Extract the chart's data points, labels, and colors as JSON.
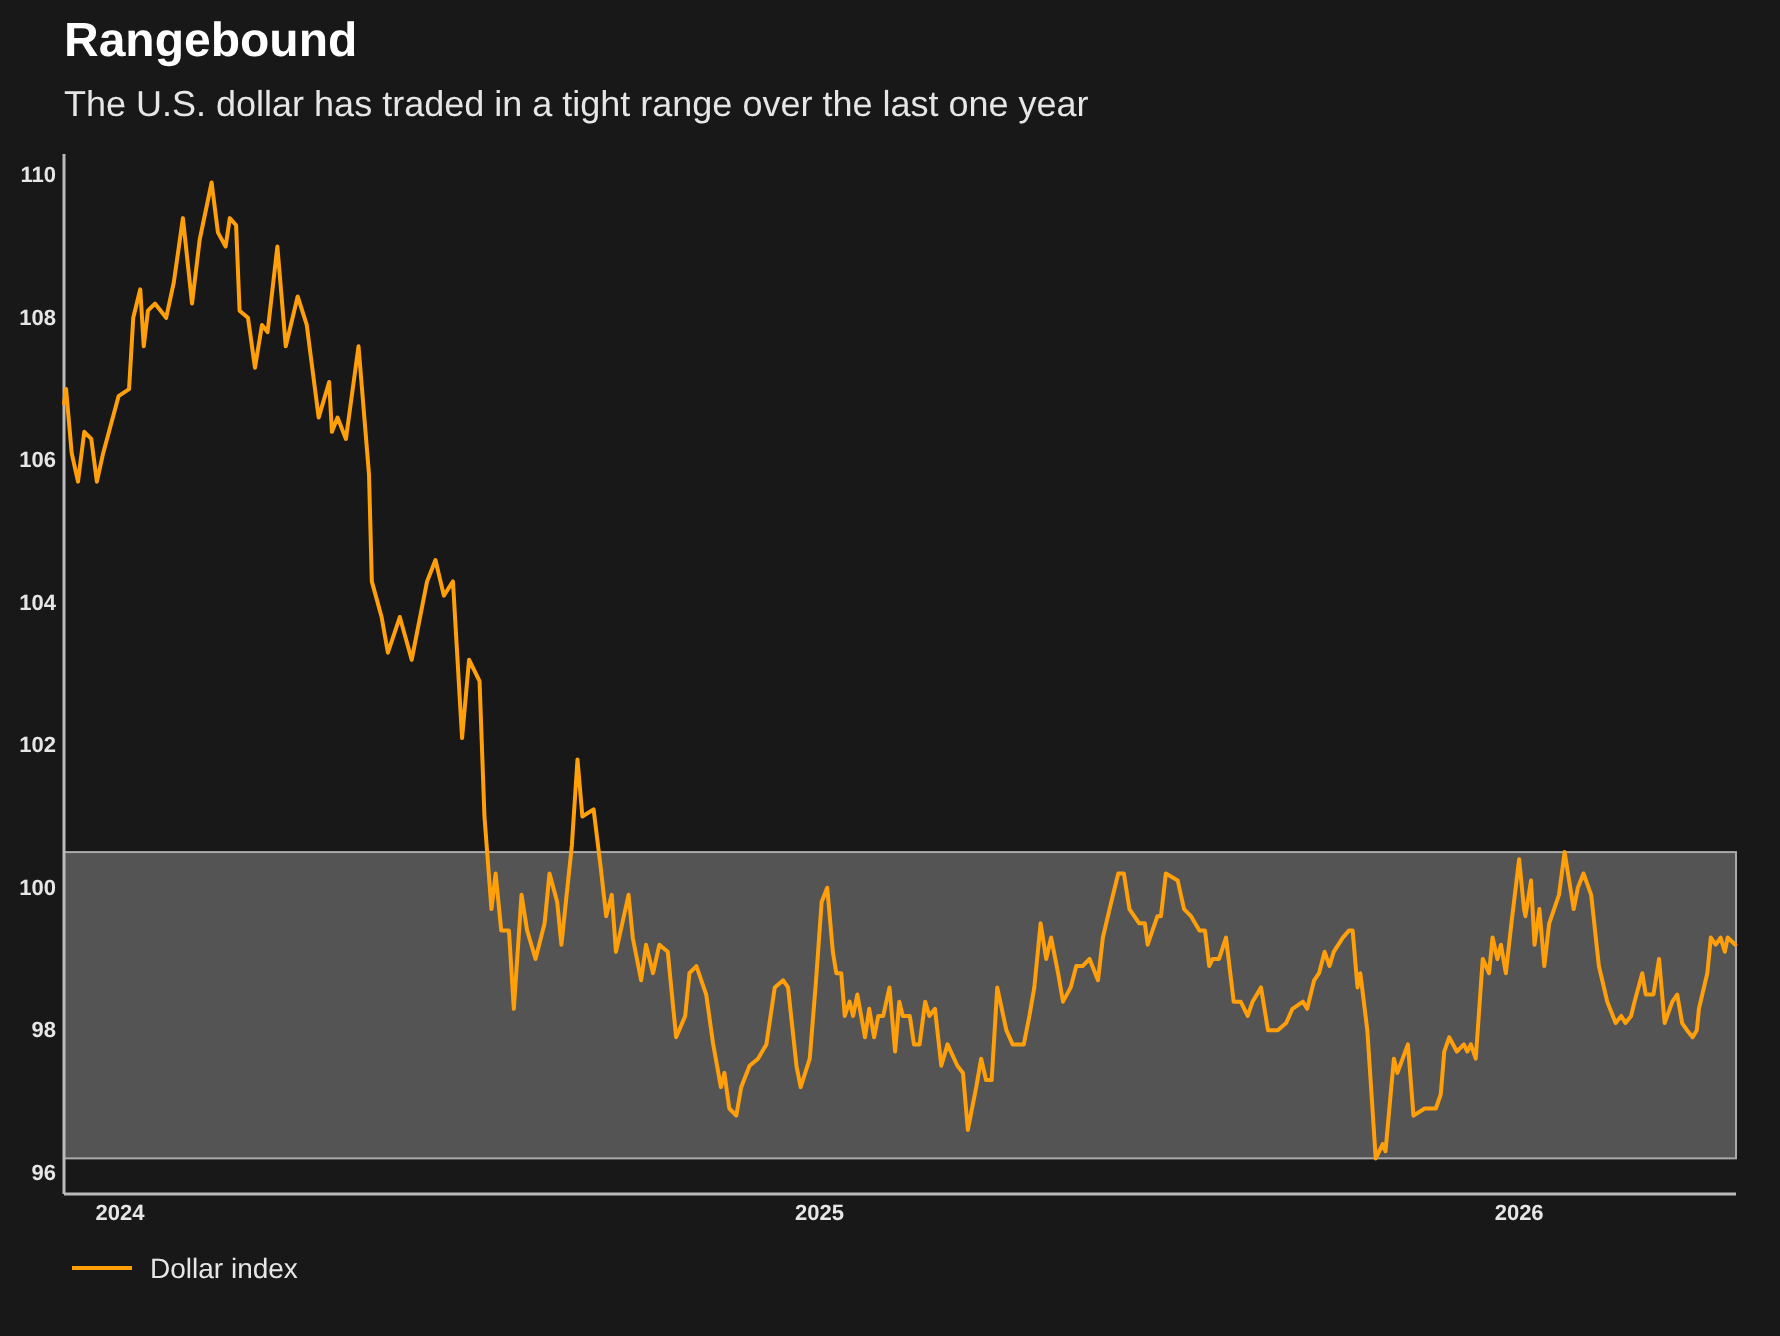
{
  "chart_data": {
    "type": "line",
    "title": "Rangebound",
    "subtitle": "The U.S. dollar has traded in a tight range over the last one year",
    "x": [
      2023.92,
      2023.923,
      2023.931,
      2023.94,
      2023.949,
      2023.959,
      2023.967,
      2023.976,
      2023.998,
      2024.013,
      2024.019,
      2024.029,
      2024.034,
      2024.04,
      2024.05,
      2024.066,
      2024.077,
      2024.09,
      2024.103,
      2024.114,
      2024.131,
      2024.14,
      2024.151,
      2024.157,
      2024.166,
      2024.171,
      2024.183,
      2024.193,
      2024.203,
      2024.211,
      2024.225,
      2024.237,
      2024.254,
      2024.267,
      2024.284,
      2024.299,
      2024.303,
      2024.311,
      2024.323,
      2024.341,
      2024.356,
      2024.36,
      2024.374,
      2024.383,
      2024.4,
      2024.417,
      2024.439,
      2024.451,
      2024.463,
      2024.476,
      2024.489,
      2024.499,
      2024.514,
      2024.521,
      2024.531,
      2024.537,
      2024.545,
      2024.556,
      2024.563,
      2024.574,
      2024.582,
      2024.594,
      2024.607,
      2024.614,
      2024.625,
      2024.631,
      2024.646,
      2024.654,
      2024.661,
      2024.677,
      2024.687,
      2024.695,
      2024.703,
      2024.709,
      2024.727,
      2024.733,
      2024.745,
      2024.752,
      2024.762,
      2024.771,
      2024.783,
      2024.795,
      2024.808,
      2024.814,
      2024.824,
      2024.838,
      2024.848,
      2024.859,
      2024.864,
      2024.871,
      2024.881,
      2024.888,
      2024.9,
      2024.912,
      2024.924,
      2024.936,
      2024.948,
      2024.955,
      2024.967,
      2024.973,
      2024.986,
      2024.995,
      2025.003,
      2025.011,
      2025.019,
      2025.024,
      2025.031,
      2025.036,
      2025.043,
      2025.048,
      2025.054,
      2025.065,
      2025.071,
      2025.078,
      2025.084,
      2025.091,
      2025.1,
      2025.108,
      2025.114,
      2025.119,
      2025.129,
      2025.135,
      2025.143,
      2025.151,
      2025.157,
      2025.165,
      2025.174,
      2025.183,
      2025.197,
      2025.205,
      2025.212,
      2025.224,
      2025.231,
      2025.238,
      2025.246,
      2025.254,
      2025.267,
      2025.276,
      2025.286,
      2025.292,
      2025.3,
      2025.307,
      2025.316,
      2025.324,
      2025.331,
      2025.341,
      2025.348,
      2025.359,
      2025.367,
      2025.376,
      2025.386,
      2025.398,
      2025.405,
      2025.417,
      2025.427,
      2025.435,
      2025.443,
      2025.457,
      2025.465,
      2025.469,
      2025.483,
      2025.488,
      2025.495,
      2025.512,
      2025.521,
      2025.531,
      2025.543,
      2025.551,
      2025.557,
      2025.562,
      2025.571,
      2025.581,
      2025.592,
      2025.602,
      2025.612,
      2025.619,
      2025.631,
      2025.641,
      2025.655,
      2025.667,
      2025.676,
      2025.691,
      2025.697,
      2025.707,
      2025.714,
      2025.722,
      2025.729,
      2025.735,
      2025.748,
      2025.757,
      2025.762,
      2025.769,
      2025.773,
      2025.783,
      2025.795,
      2025.805,
      2025.809,
      2025.821,
      2025.826,
      2025.841,
      2025.849,
      2025.865,
      2025.869,
      2025.881,
      2025.888,
      2025.893,
      2025.9,
      2025.911,
      2025.921,
      2025.926,
      2025.931,
      2025.938,
      2025.948,
      2025.957,
      2025.962,
      2025.969,
      2025.974,
      2025.981,
      2025.989,
      2026.0,
      2026.007,
      2026.009,
      2026.017,
      2026.022,
      2026.029,
      2026.036,
      2026.043,
      2026.057,
      2026.065,
      2026.078,
      2026.084,
      2026.092,
      2026.103,
      2026.114,
      2026.126,
      2026.138,
      2026.146,
      2026.152,
      2026.16,
      2026.165,
      2026.176,
      2026.181,
      2026.192,
      2026.2,
      2026.208,
      2026.219,
      2026.226,
      2026.233,
      2026.24,
      2026.248,
      2026.254,
      2026.257,
      2026.269,
      2026.274,
      2026.281,
      2026.288,
      2026.294,
      2026.298,
      2026.309
    ],
    "series": [
      {
        "name": "Dollar index",
        "color": "#ff9f0a",
        "values": [
          106.8,
          107.0,
          106.1,
          105.7,
          106.4,
          106.3,
          105.7,
          106.1,
          106.9,
          107.0,
          108.0,
          108.4,
          107.6,
          108.1,
          108.2,
          108.0,
          108.5,
          109.4,
          108.2,
          109.1,
          109.9,
          109.2,
          109.0,
          109.4,
          109.3,
          108.1,
          108.0,
          107.3,
          107.9,
          107.8,
          109.0,
          107.6,
          108.3,
          107.9,
          106.6,
          107.1,
          106.4,
          106.6,
          106.3,
          107.6,
          105.8,
          104.3,
          103.8,
          103.3,
          103.8,
          103.2,
          104.3,
          104.6,
          104.1,
          104.3,
          102.1,
          103.2,
          102.9,
          101.0,
          99.7,
          100.2,
          99.4,
          99.4,
          98.3,
          99.9,
          99.4,
          99.0,
          99.5,
          100.2,
          99.8,
          99.2,
          100.6,
          101.8,
          101.0,
          101.1,
          100.3,
          99.6,
          99.9,
          99.1,
          99.9,
          99.3,
          98.7,
          99.2,
          98.8,
          99.2,
          99.1,
          97.9,
          98.2,
          98.8,
          98.9,
          98.5,
          97.8,
          97.2,
          97.4,
          96.9,
          96.8,
          97.2,
          97.5,
          97.6,
          97.8,
          98.6,
          98.7,
          98.6,
          97.5,
          97.2,
          97.6,
          98.7,
          99.8,
          100.0,
          99.1,
          98.8,
          98.8,
          98.2,
          98.4,
          98.2,
          98.5,
          97.9,
          98.3,
          97.9,
          98.2,
          98.2,
          98.6,
          97.7,
          98.4,
          98.2,
          98.2,
          97.8,
          97.8,
          98.4,
          98.2,
          98.3,
          97.5,
          97.8,
          97.5,
          97.4,
          96.6,
          97.2,
          97.6,
          97.3,
          97.3,
          98.6,
          98.0,
          97.8,
          97.8,
          97.8,
          98.2,
          98.6,
          99.5,
          99.0,
          99.3,
          98.8,
          98.4,
          98.6,
          98.9,
          98.9,
          99.0,
          98.7,
          99.3,
          99.8,
          100.2,
          100.2,
          99.7,
          99.5,
          99.5,
          99.2,
          99.6,
          99.6,
          100.2,
          100.1,
          99.7,
          99.6,
          99.4,
          99.4,
          98.9,
          99.0,
          99.0,
          99.3,
          98.4,
          98.4,
          98.2,
          98.4,
          98.6,
          98.0,
          98.0,
          98.1,
          98.3,
          98.4,
          98.3,
          98.7,
          98.8,
          99.1,
          98.9,
          99.1,
          99.3,
          99.4,
          99.4,
          98.6,
          98.8,
          98.0,
          96.2,
          96.4,
          96.3,
          97.6,
          97.4,
          97.8,
          96.8,
          96.9,
          96.9,
          96.9,
          97.1,
          97.7,
          97.9,
          97.7,
          97.8,
          97.7,
          97.8,
          97.6,
          99.0,
          98.8,
          99.3,
          99.0,
          99.2,
          98.8,
          99.5,
          100.4,
          99.7,
          99.6,
          100.1,
          99.2,
          99.7,
          98.9,
          99.5,
          99.9,
          100.5,
          99.7,
          100.0,
          100.2,
          99.9,
          98.9,
          98.4,
          98.1,
          98.2,
          98.1,
          98.2,
          98.4,
          98.8,
          98.5,
          98.5,
          99.0,
          98.1,
          98.4,
          98.5,
          98.1,
          98.0,
          97.9,
          98.0,
          98.3,
          98.8,
          99.3,
          99.2,
          99.3,
          99.1,
          99.3,
          99.2
        ]
      }
    ],
    "xlim": [
      2023.92,
      2026.31
    ],
    "xticks": [
      2024,
      2025,
      2026
    ],
    "ylim": [
      95.7,
      110.3
    ],
    "yticks": [
      96,
      98,
      100,
      102,
      104,
      106,
      108,
      110
    ],
    "bands": [
      {
        "axis": "y",
        "from": 96.2,
        "to": 100.5,
        "color": "#545454"
      }
    ],
    "legend": "bottom left"
  }
}
